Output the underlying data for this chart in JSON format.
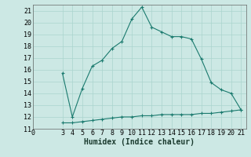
{
  "title": "",
  "xlabel": "Humidex (Indice chaleur)",
  "bg_color": "#cce8e4",
  "grid_color": "#aad4ce",
  "line_color": "#1a7a6e",
  "line1_x": [
    3,
    4,
    5,
    6,
    7,
    8,
    9,
    10,
    11,
    12,
    13,
    14,
    15,
    16,
    17,
    18,
    19,
    20,
    21
  ],
  "line1_y": [
    15.7,
    12.0,
    14.4,
    16.3,
    16.8,
    17.8,
    18.4,
    20.3,
    21.3,
    19.6,
    19.2,
    18.8,
    18.8,
    18.6,
    16.9,
    14.9,
    14.3,
    14.0,
    12.6
  ],
  "line2_x": [
    3,
    4,
    5,
    6,
    7,
    8,
    9,
    10,
    11,
    12,
    13,
    14,
    15,
    16,
    17,
    18,
    19,
    20,
    21
  ],
  "line2_y": [
    11.5,
    11.5,
    11.6,
    11.7,
    11.8,
    11.9,
    12.0,
    12.0,
    12.1,
    12.1,
    12.2,
    12.2,
    12.2,
    12.2,
    12.3,
    12.3,
    12.4,
    12.5,
    12.6
  ],
  "xlim": [
    0,
    21.5
  ],
  "ylim": [
    11,
    21.5
  ],
  "xticks": [
    0,
    3,
    4,
    5,
    6,
    7,
    8,
    9,
    10,
    11,
    12,
    13,
    14,
    15,
    16,
    17,
    18,
    19,
    20,
    21
  ],
  "yticks": [
    11,
    12,
    13,
    14,
    15,
    16,
    17,
    18,
    19,
    20,
    21
  ],
  "xlabel_fontsize": 7,
  "tick_fontsize": 6
}
